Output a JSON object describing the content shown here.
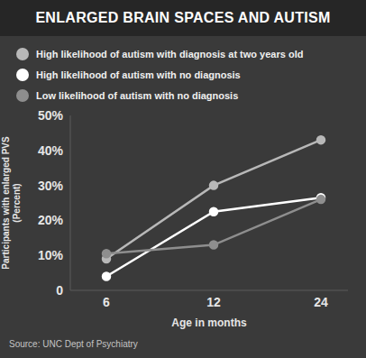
{
  "chart_data": {
    "type": "line",
    "title": "ENLARGED BRAIN SPACES AND AUTISM",
    "x_label": "Age in months",
    "y_label": "Participants with enlarged PVS (Percent)",
    "source": "Source: UNC Dept of Psychiatry",
    "categories": [
      "6",
      "12",
      "24"
    ],
    "series": [
      {
        "name": "High likelihood of autism with diagnosis at two years old",
        "color": "#b8b8b8",
        "values": [
          9,
          30,
          43
        ]
      },
      {
        "name": "High likelihood of autism with no diagnosis",
        "color": "#ffffff",
        "values": [
          4,
          22.5,
          26.5
        ]
      },
      {
        "name": "Low likelihood of autism with no diagnosis",
        "color": "#8e8e8e",
        "values": [
          10.5,
          13,
          26
        ]
      }
    ],
    "ylim": [
      0,
      50
    ],
    "yticks": [
      0,
      {
        "value": 10,
        "label": "10%"
      },
      {
        "value": 20,
        "label": "20%"
      },
      {
        "value": 30,
        "label": "30%"
      },
      {
        "value": 40,
        "label": "40%"
      },
      {
        "value": 50,
        "label": "50%"
      }
    ],
    "grid": false,
    "legend": "top-left",
    "marker": "circle"
  }
}
